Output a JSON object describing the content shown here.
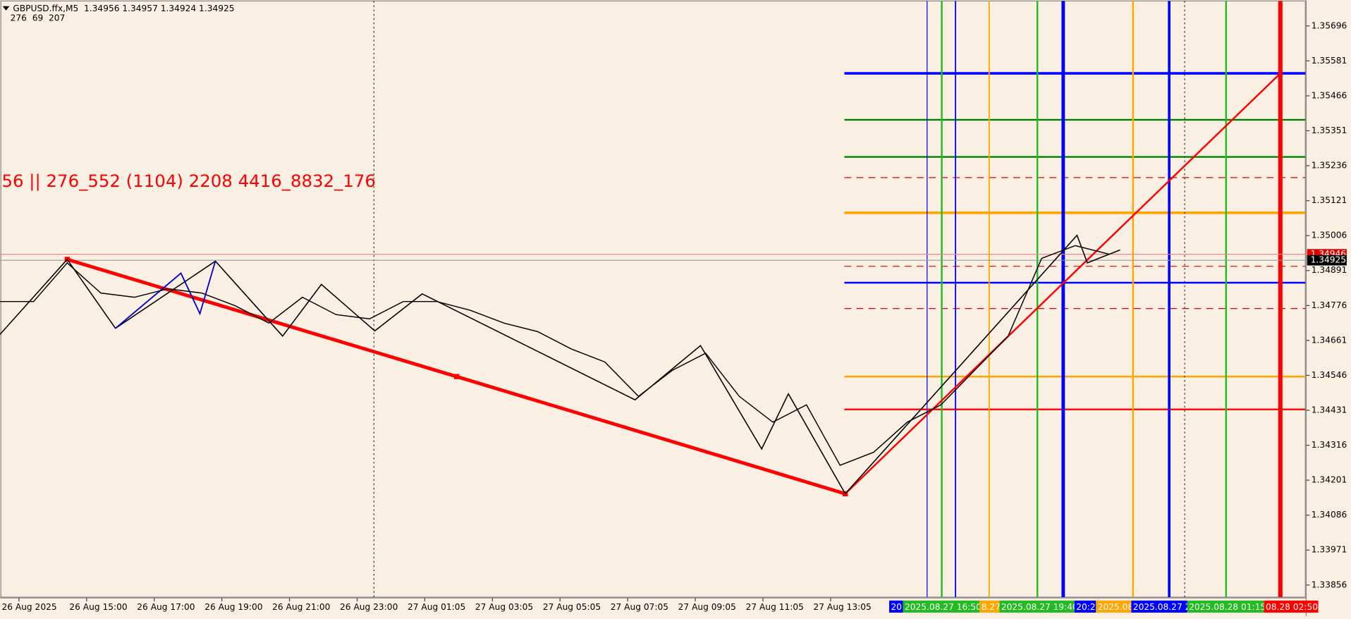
{
  "header": {
    "symbol_line": "GBPUSD.ffx,M5  1.34956 1.34957 1.34924 1.34925",
    "indicator_line": "276  69  207"
  },
  "overlay_text": "56 || 276_552 (1104) 2208 4416_8832_176",
  "price_axis": {
    "ylim": [
      1.33819,
      1.35781
    ],
    "ticks": [
      1.35696,
      1.35581,
      1.35466,
      1.35351,
      1.35236,
      1.35121,
      1.35006,
      1.34891,
      1.34776,
      1.34661,
      1.34546,
      1.34431,
      1.34316,
      1.34201,
      1.34086,
      1.33971,
      1.33856
    ]
  },
  "price_tags": [
    {
      "label": "1.34946",
      "color": "#e00000"
    },
    {
      "label": "1.34925",
      "color": "#000000"
    }
  ],
  "time_axis": [
    "26 Aug 2025",
    "26 Aug 15:00",
    "26 Aug 17:00",
    "26 Aug 19:00",
    "26 Aug 21:00",
    "26 Aug 23:00",
    "27 Aug 01:05",
    "27 Aug 03:05",
    "27 Aug 05:05",
    "27 Aug 07:05",
    "27 Aug 09:05",
    "27 Aug 11:05",
    "27 Aug 13:05"
  ],
  "time_markers": [
    {
      "label": "20",
      "color": "#0000ff"
    },
    {
      "label": "2025.08.27 16:50",
      "color": "#22bb22"
    },
    {
      "label": "8.27",
      "color": "#ffa500"
    },
    {
      "label": "2025.08.27 19:40",
      "color": "#22bb22"
    },
    {
      "label": "20:2",
      "color": "#0000ff"
    },
    {
      "label": "2025.08",
      "color": "#ffa500"
    },
    {
      "label": "2025.08.27 2",
      "color": "#0000ff"
    },
    {
      "label": "2025.08.28 01:15",
      "color": "#22bb22"
    },
    {
      "label": "08.28 02:50",
      "color": "#ff0000"
    }
  ],
  "levels": [
    {
      "price": 1.3554,
      "color": "#0000ff"
    },
    {
      "price": 1.35387,
      "color": "#008000"
    },
    {
      "price": 1.35265,
      "color": "#008000"
    },
    {
      "price": 1.35197,
      "color": "#e00000",
      "dashed": true
    },
    {
      "price": 1.35081,
      "color": "#ffa500"
    },
    {
      "price": 1.34905,
      "color": "#e00000",
      "dashed": true
    },
    {
      "price": 1.34851,
      "color": "#0000ff"
    },
    {
      "price": 1.34766,
      "color": "#e00000",
      "dashed": true
    },
    {
      "price": 1.34542,
      "color": "#ffa500"
    },
    {
      "price": 1.34434,
      "color": "#ff0000"
    }
  ],
  "price": {
    "color": "#000000",
    "values": [
      1.34789,
      1.34789,
      1.34916,
      1.34817,
      1.34803,
      1.34831,
      1.34817,
      1.34775,
      1.34718,
      1.34803,
      1.34746,
      1.34732,
      1.34789,
      1.34789,
      1.3476,
      1.34718,
      1.3469,
      1.34633,
      1.3459,
      1.34477,
      1.34562,
      1.34619,
      1.34477,
      1.34392,
      1.34449,
      1.3425,
      1.34293,
      1.34392,
      1.34449,
      1.34562,
      1.34675,
      1.34931,
      1.34973,
      1.34945
    ]
  }
}
